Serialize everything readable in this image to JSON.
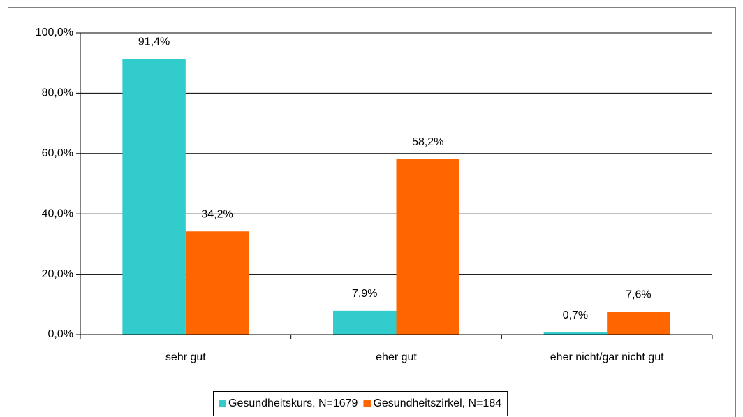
{
  "chart_data": {
    "type": "bar",
    "categories": [
      "sehr gut",
      "eher gut",
      "eher nicht/gar nicht gut"
    ],
    "series": [
      {
        "name": "Gesundheitskurs, N=1679",
        "color": "#33cccc",
        "values": [
          91.4,
          7.9,
          0.7
        ],
        "value_labels": [
          "91,4%",
          "7,9%",
          "0,7%"
        ]
      },
      {
        "name": "Gesundheitszirkel, N=184",
        "color": "#ff6600",
        "values": [
          34.2,
          58.2,
          7.6
        ],
        "value_labels": [
          "34,2%",
          "58,2%",
          "7,6%"
        ]
      }
    ],
    "ylim": [
      0,
      100
    ],
    "yticks": [
      {
        "value": 0,
        "label": "0,0%"
      },
      {
        "value": 20,
        "label": "20,0%"
      },
      {
        "value": 40,
        "label": "40,0%"
      },
      {
        "value": 60,
        "label": "60,0%"
      },
      {
        "value": 80,
        "label": "80,0%"
      },
      {
        "value": 100,
        "label": "100,0%"
      }
    ],
    "grid": true,
    "legend": "bottom"
  }
}
